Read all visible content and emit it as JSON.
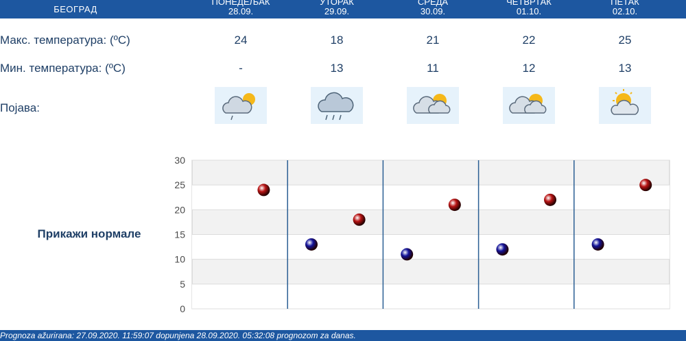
{
  "header": {
    "city": "БЕОГРАД",
    "days": [
      {
        "name": "ПОНЕДЕЉАК",
        "date": "28.09."
      },
      {
        "name": "УТОРАК",
        "date": "29.09."
      },
      {
        "name": "СРЕДА",
        "date": "30.09."
      },
      {
        "name": "ЧЕТВРТАК",
        "date": "01.10."
      },
      {
        "name": "ПЕТАК",
        "date": "02.10."
      }
    ]
  },
  "rows": {
    "max_label": "Макс. температура: (ºC)",
    "min_label": "Мин. температура: (ºC)",
    "phenomenon_label": "Појава:"
  },
  "max_temps": [
    "24",
    "18",
    "21",
    "22",
    "25"
  ],
  "min_temps": [
    "-",
    "13",
    "11",
    "12",
    "13"
  ],
  "icons": [
    "cloud-sun-drizzle-icon",
    "cloud-rain-icon",
    "cloud-sun-icon",
    "cloud-sun-icon",
    "sun-cloud-icon"
  ],
  "normals_link": "Прикажи нормале",
  "chart_data": {
    "type": "scatter",
    "title": "",
    "xlabel": "",
    "ylabel": "",
    "ylim": [
      0,
      30
    ],
    "yticks": [
      "0",
      "5",
      "10",
      "15",
      "20",
      "25",
      "30"
    ],
    "categories": [
      "ПОНЕДЕЉАК",
      "УТОРАК",
      "СРЕДА",
      "ЧЕТВРТАК",
      "ПЕТАК"
    ],
    "series": [
      {
        "color": "#b81414",
        "values": [
          24,
          18,
          21,
          22,
          25
        ]
      },
      {
        "color": "#14149a",
        "values": [
          null,
          13,
          11,
          12,
          13
        ]
      }
    ],
    "grid": true
  },
  "footer": "Prognoza ažurirana:  27.09.2020. 11:59:07 dopunjena 28.09.2020. 05:32:08 prognozom za danas."
}
